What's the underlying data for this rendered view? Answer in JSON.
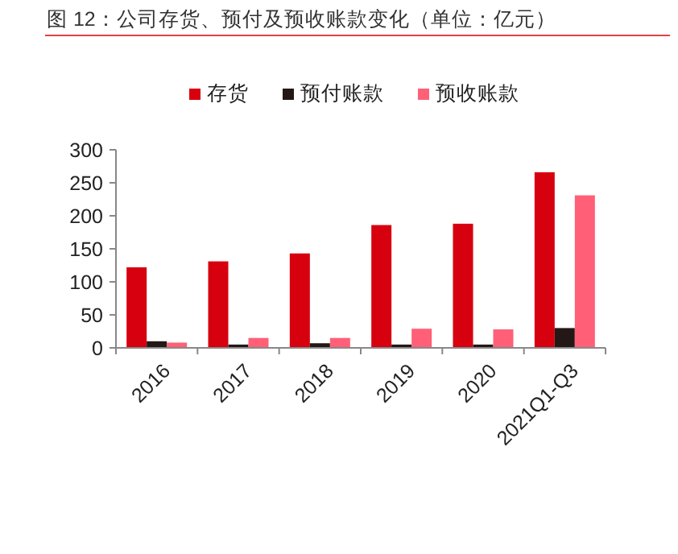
{
  "chart_data": {
    "type": "bar",
    "title": "图 12：公司存货、预付及预收账款变化（单位：亿元）",
    "categories": [
      "2016",
      "2017",
      "2018",
      "2019",
      "2020",
      "2021Q1-Q3"
    ],
    "series": [
      {
        "name": "存货",
        "color": "#d7000f",
        "values": [
          122,
          131,
          143,
          186,
          188,
          266
        ]
      },
      {
        "name": "预付账款",
        "color": "#231815",
        "values": [
          10,
          5,
          7,
          5,
          5,
          30
        ]
      },
      {
        "name": "预收账款",
        "color": "#ff6077",
        "values": [
          8,
          15,
          15,
          29,
          28,
          231
        ]
      }
    ],
    "ylim": [
      0,
      300
    ],
    "yticks": [
      0,
      50,
      100,
      150,
      200,
      250,
      300
    ],
    "grid": false,
    "legend": "top"
  }
}
